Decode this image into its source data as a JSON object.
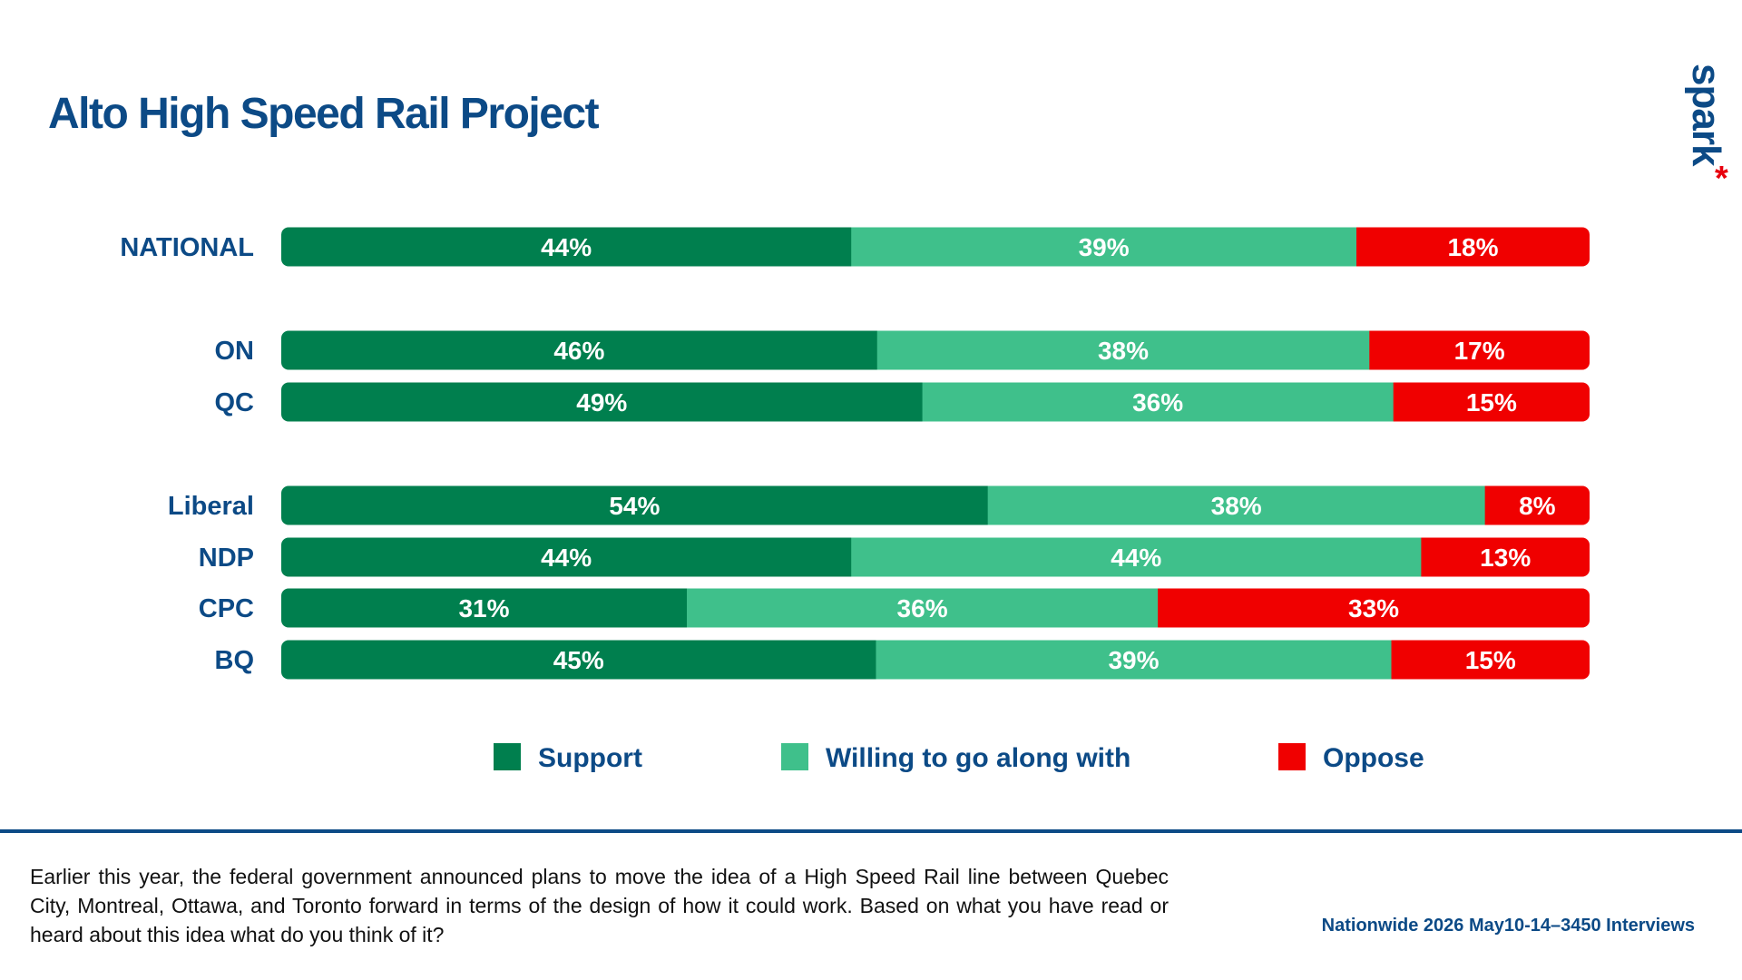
{
  "title": "Alto High Speed Rail Project",
  "logo": {
    "word": "spark",
    "mark": "*",
    "mark_color": "#e8000d"
  },
  "colors": {
    "support": "#007f4e",
    "willing": "#3fc08b",
    "oppose": "#f00000",
    "text": "#0c4a86"
  },
  "chart_data": {
    "type": "bar",
    "orientation": "horizontal",
    "stacked": true,
    "percent_stacked": true,
    "categories": [
      "NATIONAL",
      "ON",
      "QC",
      "Liberal",
      "NDP",
      "CPC",
      "BQ"
    ],
    "series": [
      {
        "name": "Support",
        "values": [
          44,
          46,
          49,
          54,
          44,
          31,
          45
        ],
        "labels": [
          "44%",
          "46%",
          "49%",
          "54%",
          "44%",
          "31%",
          "45%"
        ]
      },
      {
        "name": "Willing to go along with",
        "values": [
          39,
          38,
          36,
          38,
          44,
          36,
          39
        ],
        "labels": [
          "39%",
          "38%",
          "36%",
          "38%",
          "44%",
          "36%",
          "39%"
        ]
      },
      {
        "name": "Oppose",
        "values": [
          18,
          17,
          15,
          8,
          13,
          33,
          15
        ],
        "labels": [
          "18%",
          "17%",
          "15%",
          "8%",
          "13%",
          "33%",
          "15%"
        ]
      }
    ],
    "legend_position": "bottom",
    "grid": false
  },
  "footer": {
    "question": "Earlier this year, the federal government announced plans to move the idea of a High Speed Rail line between Quebec City, Montreal, Ottawa, and Toronto forward in terms of the design of how it could work. Based on what you have read or heard about this idea what do you think of it?",
    "source": "Nationwide 2026 May10-14–3450 Interviews"
  }
}
